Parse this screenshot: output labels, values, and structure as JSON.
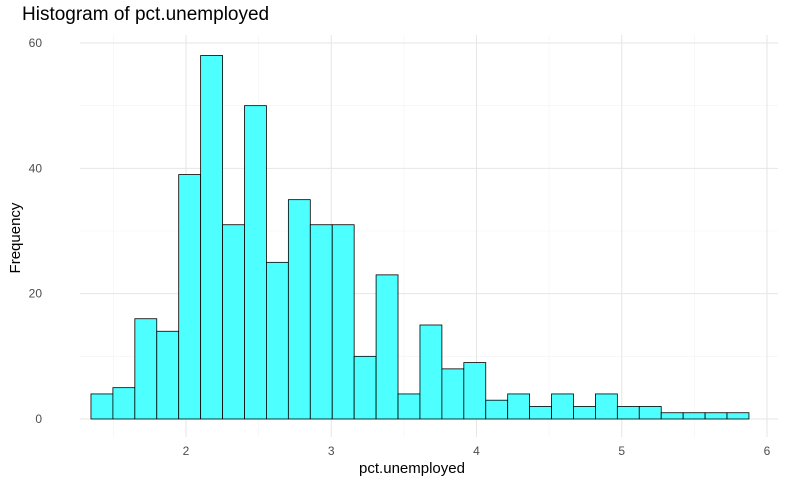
{
  "chart_data": {
    "type": "bar",
    "title": "Histogram of pct.unemployed",
    "xlabel": "pct.unemployed",
    "ylabel": "Frequency",
    "xlim": [
      1.3,
      5.85
    ],
    "ylim": [
      0,
      60
    ],
    "x_ticks": [
      2,
      3,
      4,
      5,
      6
    ],
    "y_ticks": [
      0,
      20,
      40,
      60
    ],
    "bin_width": 0.151,
    "bin_start": 1.27,
    "values": [
      4,
      5,
      16,
      14,
      39,
      58,
      31,
      50,
      25,
      35,
      31,
      31,
      10,
      23,
      4,
      15,
      8,
      9,
      3,
      4,
      2,
      4,
      2,
      4,
      2,
      2,
      1,
      1,
      1,
      1
    ],
    "bar_fill": "#4dffff",
    "bar_stroke": "#000000",
    "grid": true
  }
}
